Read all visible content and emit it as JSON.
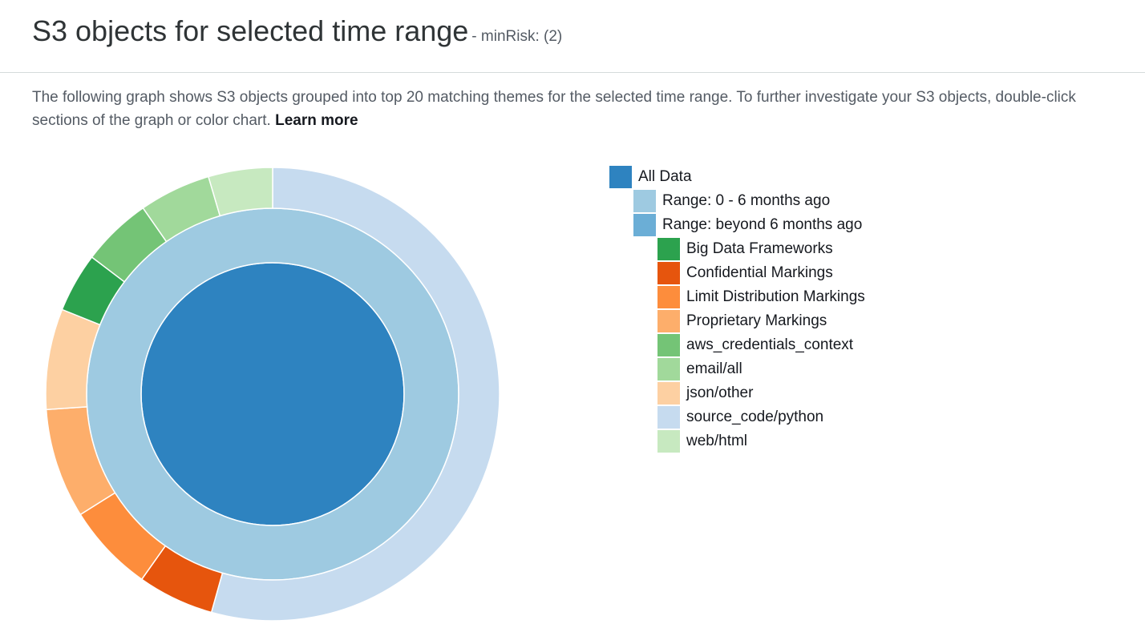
{
  "header": {
    "title": "S3 objects for selected time range",
    "subtitle": "- minRisk: (2)"
  },
  "description": {
    "text": "The following graph shows S3 objects grouped into top 20 matching themes for the selected time range. To further investigate your S3 objects, double-click sections of the graph or color chart.",
    "link_label": "Learn more"
  },
  "legend": [
    {
      "label": "All Data",
      "level": 0,
      "color": "#2e83c0"
    },
    {
      "label": "Range: 0 - 6 months ago",
      "level": 1,
      "color": "#9ecae1"
    },
    {
      "label": "Range: beyond 6 months ago",
      "level": 1,
      "color": "#6baed6"
    },
    {
      "label": "Big Data Frameworks",
      "level": 2,
      "color": "#2ca24e"
    },
    {
      "label": "Confidential Markings",
      "level": 2,
      "color": "#e6550d"
    },
    {
      "label": "Limit Distribution Markings",
      "level": 2,
      "color": "#fd8d3c"
    },
    {
      "label": "Proprietary Markings",
      "level": 2,
      "color": "#fdae6b"
    },
    {
      "label": "aws_credentials_context",
      "level": 2,
      "color": "#74c476"
    },
    {
      "label": "email/all",
      "level": 2,
      "color": "#a1d99b"
    },
    {
      "label": "json/other",
      "level": 2,
      "color": "#fdd0a2"
    },
    {
      "label": "source_code/python",
      "level": 2,
      "color": "#c6dbef"
    },
    {
      "label": "web/html",
      "level": 2,
      "color": "#c7e9c0"
    }
  ],
  "chart_data": {
    "type": "sunburst",
    "rings": [
      {
        "name": "All Data",
        "segments": [
          {
            "label": "All Data",
            "value": 100,
            "color": "#2e83c0"
          }
        ]
      },
      {
        "name": "Range",
        "segments": [
          {
            "label": "Range: 0 - 6 months ago",
            "value": 100,
            "color": "#9ecae1"
          }
        ]
      },
      {
        "name": "Themes",
        "segments": [
          {
            "label": "source_code/python",
            "value": 50,
            "color": "#c6dbef"
          },
          {
            "label": "Confidential Markings",
            "value": 5,
            "color": "#e6550d"
          },
          {
            "label": "Limit Distribution Markings",
            "value": 5.8,
            "color": "#fd8d3c"
          },
          {
            "label": "Proprietary Markings",
            "value": 7.2,
            "color": "#fdae6b"
          },
          {
            "label": "json/other",
            "value": 6.6,
            "color": "#fdd0a2"
          },
          {
            "label": "Big Data Frameworks",
            "value": 3.9,
            "color": "#2ca24e"
          },
          {
            "label": "aws_credentials_context",
            "value": 4.6,
            "color": "#74c476"
          },
          {
            "label": "email/all",
            "value": 4.7,
            "color": "#a1d99b"
          },
          {
            "label": "web/html",
            "value": 4.2,
            "color": "#c7e9c0"
          }
        ]
      }
    ]
  }
}
